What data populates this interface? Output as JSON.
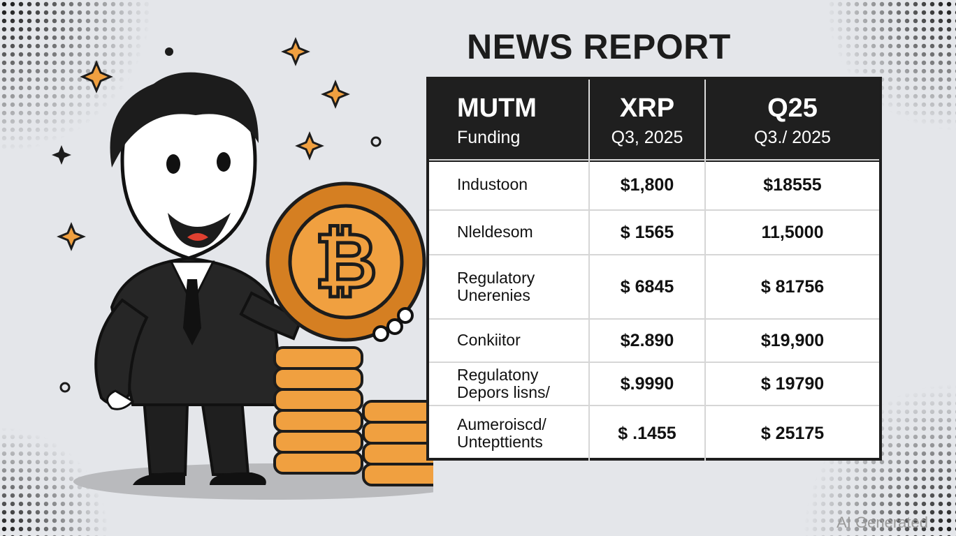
{
  "title": "NEWS REPORT",
  "table": {
    "headers": [
      {
        "main": "MUTM",
        "sub": "Funding"
      },
      {
        "main": "XRP",
        "sub": "Q3, 2025"
      },
      {
        "main": "Q25",
        "sub": "Q3./ 2025"
      }
    ],
    "rows": [
      {
        "label": [
          "Industoon"
        ],
        "xrp": "$1,800",
        "q25": "$18555"
      },
      {
        "label": [
          "Nleldesom"
        ],
        "xrp": "$ 1565",
        "q25": "11,5000"
      },
      {
        "label": [
          "Regulatory",
          "Unerenies"
        ],
        "xrp": "$ 6845",
        "q25": "$ 81756"
      },
      {
        "label": [
          "Conkiitor"
        ],
        "xrp": "$2.890",
        "q25": "$19,900"
      },
      {
        "label": [
          "Regulatony",
          "Depors lisns/"
        ],
        "xrp": "$.9990",
        "q25": "$ 19790"
      },
      {
        "label": [
          "Aumeroiscd/",
          "Untepttients"
        ],
        "xrp": "$ .1455",
        "q25": "$ 25175"
      }
    ]
  },
  "watermark": "AI Generated",
  "colors": {
    "coin": "#f0a040",
    "coin_dark": "#d57f22",
    "ink": "#1c1c1c",
    "background": "#e4e6ea"
  }
}
